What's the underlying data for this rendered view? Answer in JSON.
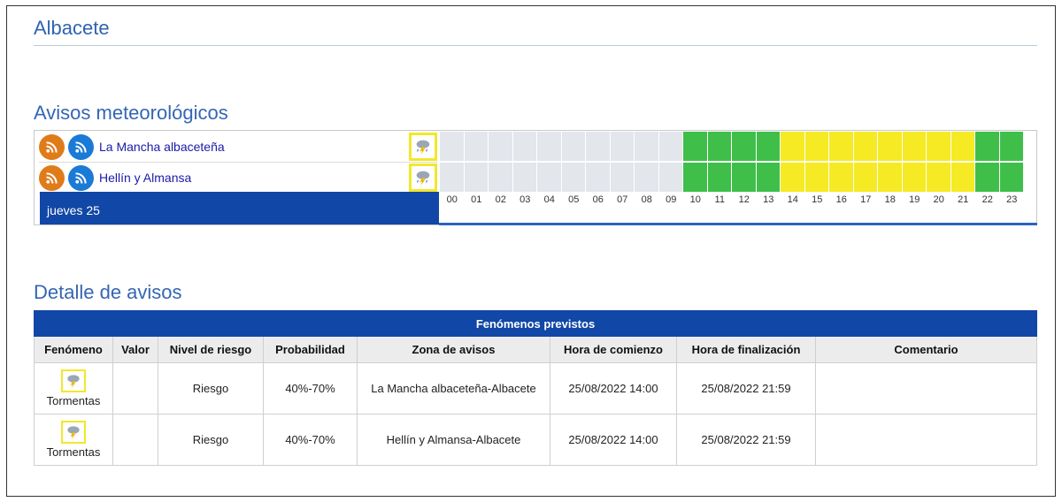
{
  "page": {
    "title": "Albacete"
  },
  "warnings": {
    "heading": "Avisos meteorológicos",
    "zones": [
      {
        "name": "La Mancha albaceteña",
        "phenomenon_icon": "thunderstorm-icon",
        "hours": [
          "none",
          "none",
          "none",
          "none",
          "none",
          "none",
          "none",
          "none",
          "none",
          "none",
          "green",
          "green",
          "green",
          "green",
          "yellow",
          "yellow",
          "yellow",
          "yellow",
          "yellow",
          "yellow",
          "yellow",
          "yellow",
          "green",
          "green"
        ]
      },
      {
        "name": "Hellín y Almansa",
        "phenomenon_icon": "thunderstorm-icon",
        "hours": [
          "none",
          "none",
          "none",
          "none",
          "none",
          "none",
          "none",
          "none",
          "none",
          "none",
          "green",
          "green",
          "green",
          "green",
          "yellow",
          "yellow",
          "yellow",
          "yellow",
          "yellow",
          "yellow",
          "yellow",
          "yellow",
          "green",
          "green"
        ]
      }
    ],
    "day_label": "jueves 25",
    "hour_labels": [
      "00",
      "01",
      "02",
      "03",
      "04",
      "05",
      "06",
      "07",
      "08",
      "09",
      "10",
      "11",
      "12",
      "13",
      "14",
      "15",
      "16",
      "17",
      "18",
      "19",
      "20",
      "21",
      "22",
      "23"
    ],
    "colors": {
      "none": "#e3e6eb",
      "green": "#3fbf4a",
      "yellow": "#f5ea24"
    }
  },
  "detail": {
    "heading": "Detalle de avisos",
    "table_title": "Fenómenos previstos",
    "columns": [
      "Fenómeno",
      "Valor",
      "Nivel de riesgo",
      "Probabilidad",
      "Zona de avisos",
      "Hora de comienzo",
      "Hora de finalización",
      "Comentario"
    ],
    "rows": [
      {
        "fenomeno": "Tormentas",
        "valor": "",
        "nivel": "Riesgo",
        "probabilidad": "40%-70%",
        "zona": "La Mancha albaceteña-Albacete",
        "comienzo": "25/08/2022 14:00",
        "fin": "25/08/2022 21:59",
        "comentario": ""
      },
      {
        "fenomeno": "Tormentas",
        "valor": "",
        "nivel": "Riesgo",
        "probabilidad": "40%-70%",
        "zona": "Hellín y Almansa-Albacete",
        "comienzo": "25/08/2022 14:00",
        "fin": "25/08/2022 21:59",
        "comentario": ""
      }
    ]
  }
}
